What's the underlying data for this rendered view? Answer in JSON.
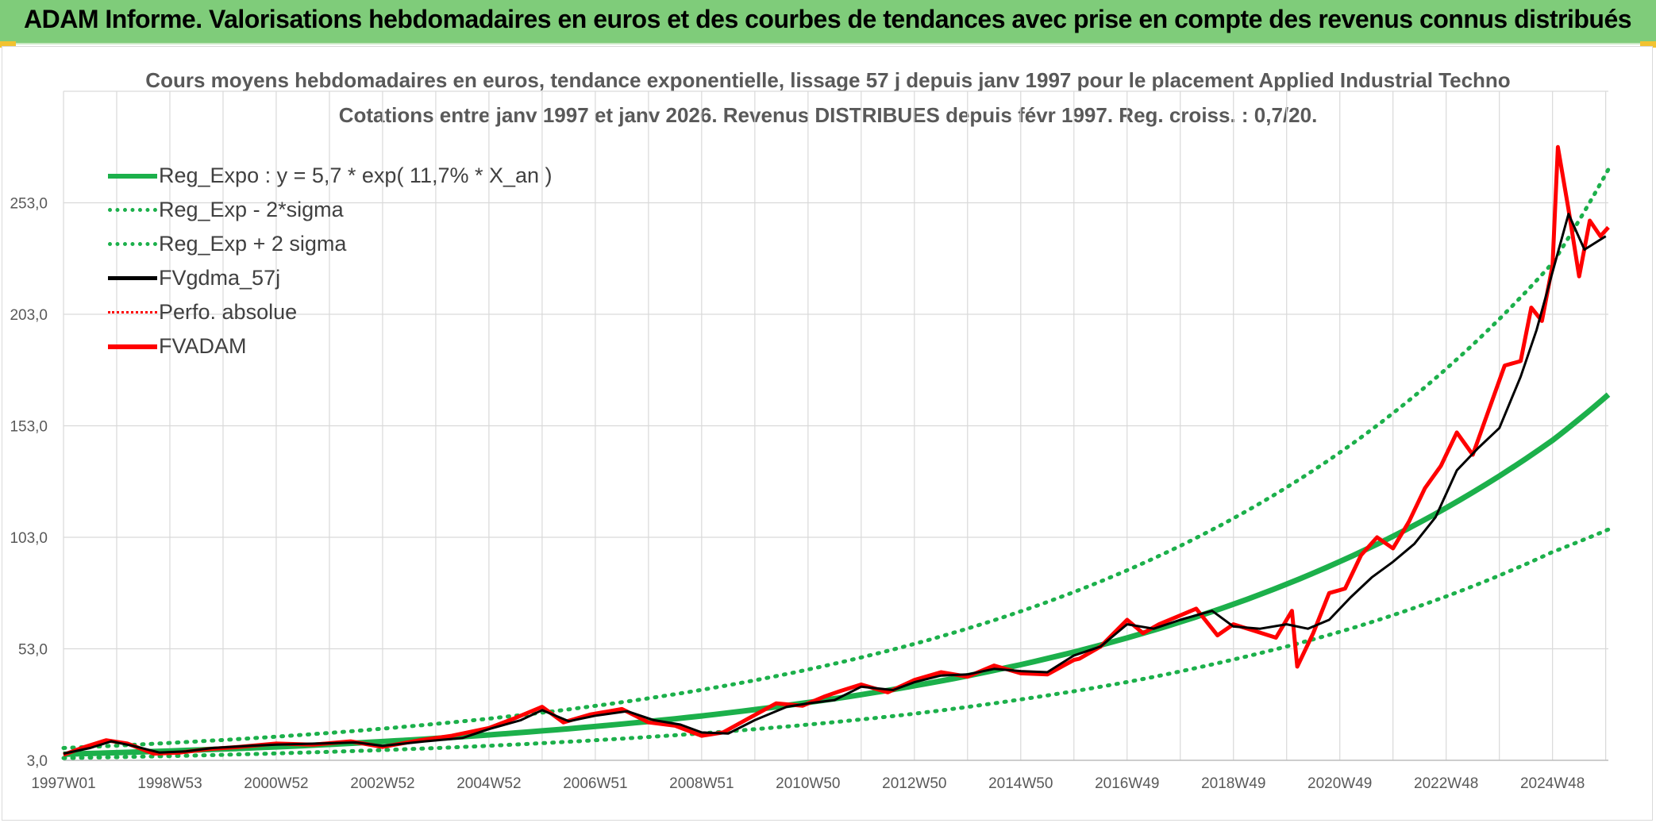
{
  "banner": {
    "title": "ADAM Informe. Valorisations hebdomadaires en euros et des courbes de tendances avec prise en compte des revenus connus distribués"
  },
  "colors": {
    "banner_bg": "#7fcc7a",
    "reg_green": "#1cb04b",
    "fvadam_red": "#ff0000",
    "fvgdma_black": "#000000",
    "grid": "#d9d9d9"
  },
  "chart_data": {
    "type": "line",
    "title_line1": "Cours moyens hebdomadaires en euros, tendance exponentielle, lissage 57 j depuis janv 1997 pour le placement Applied Industrial Techno",
    "title_line2": "Cotations entre janv 1997 et janv 2026. Revenus DISTRIBUES depuis févr 1997. Reg. croiss. : 0,7/20.",
    "xlabel": "",
    "ylabel": "",
    "x_range_years": [
      1997.0,
      2026.05
    ],
    "ylim": [
      3.0,
      303.0
    ],
    "y_ticks": [
      "3,0",
      "53,0",
      "103,0",
      "153,0",
      "203,0",
      "253,0"
    ],
    "y_tick_values": [
      3,
      53,
      103,
      153,
      203,
      253
    ],
    "x_tick_labels": [
      "1997W01",
      "1998W53",
      "2000W52",
      "2002W52",
      "2004W52",
      "2006W51",
      "2008W51",
      "2010W50",
      "2012W50",
      "2014W50",
      "2016W49",
      "2018W49",
      "2020W49",
      "2022W48",
      "2024W48"
    ],
    "x_tick_years": [
      1997.0,
      1999.0,
      2001.0,
      2003.0,
      2005.0,
      2007.0,
      2009.0,
      2011.0,
      2013.0,
      2015.0,
      2017.0,
      2019.0,
      2021.0,
      2023.0,
      2025.0
    ],
    "grid": true,
    "legend_position": "top-left",
    "legend": [
      {
        "name": "Reg_Expo : y = 5,7 * exp( 11,7% *  X_an )",
        "style": "solid-green"
      },
      {
        "name": "Reg_Exp - 2*sigma",
        "style": "dotted-green"
      },
      {
        "name": "Reg_Exp + 2 sigma",
        "style": "dotted-green"
      },
      {
        "name": "FVgdma_57j",
        "style": "solid-black"
      },
      {
        "name": "Perfo. absolue",
        "style": "dotted-red"
      },
      {
        "name": "FVADAM",
        "style": "solid-red"
      }
    ],
    "series": [
      {
        "name": "Reg_Expo",
        "x": [
          1997.0,
          1999.0,
          2001.0,
          2003.0,
          2005.0,
          2007.0,
          2009.0,
          2011.0,
          2013.0,
          2015.0,
          2017.0,
          2019.0,
          2021.0,
          2023.0,
          2025.0,
          2026.05
        ],
        "values": [
          5.7,
          7.2,
          9.0,
          11.4,
          14.4,
          18.2,
          22.9,
          28.9,
          36.4,
          45.9,
          57.9,
          73.0,
          92.1,
          116.2,
          146.5,
          167.0
        ]
      },
      {
        "name": "Reg_Exp - 2*sigma",
        "x": [
          1997.0,
          1999.0,
          2001.0,
          2003.0,
          2005.0,
          2007.0,
          2009.0,
          2011.0,
          2013.0,
          2015.0,
          2017.0,
          2019.0,
          2021.0,
          2023.0,
          2025.0,
          2026.05
        ],
        "values": [
          4.0,
          4.9,
          6.1,
          7.6,
          9.5,
          12.0,
          15.1,
          19.0,
          23.9,
          30.3,
          38.1,
          48.2,
          60.6,
          76.5,
          96.4,
          106.5
        ]
      },
      {
        "name": "Reg_Exp + 2 sigma",
        "x": [
          1997.0,
          1999.0,
          2001.0,
          2003.0,
          2005.0,
          2007.0,
          2009.0,
          2011.0,
          2013.0,
          2015.0,
          2017.0,
          2019.0,
          2021.0,
          2023.0,
          2025.0,
          2026.05
        ],
        "values": [
          8.5,
          10.8,
          13.6,
          17.2,
          21.7,
          27.4,
          34.6,
          43.7,
          55.2,
          69.8,
          88.2,
          111.5,
          141.0,
          178.5,
          226.0,
          268.0
        ]
      },
      {
        "name": "FVgdma_57j",
        "x": [
          1997.0,
          1997.5,
          1997.9,
          1998.3,
          1998.8,
          1999.3,
          1999.8,
          2000.5,
          2001.0,
          2001.8,
          2002.5,
          2003.0,
          2003.8,
          2004.5,
          2005.0,
          2005.6,
          2006.0,
          2006.5,
          2007.0,
          2007.6,
          2008.1,
          2008.6,
          2009.0,
          2009.5,
          2010.0,
          2010.6,
          2011.0,
          2011.5,
          2012.0,
          2012.6,
          2013.0,
          2013.5,
          2014.0,
          2014.5,
          2015.0,
          2015.5,
          2016.0,
          2016.5,
          2017.0,
          2017.5,
          2018.0,
          2018.6,
          2019.0,
          2019.5,
          2020.0,
          2020.4,
          2020.8,
          2021.2,
          2021.6,
          2022.0,
          2022.4,
          2022.8,
          2023.2,
          2023.6,
          2024.0,
          2024.4,
          2024.7,
          2025.0,
          2025.3,
          2025.6,
          2026.0
        ],
        "values": [
          6.0,
          8.5,
          11.5,
          9.5,
          6.5,
          7.0,
          8.5,
          9.5,
          10.0,
          10.5,
          11.0,
          9.5,
          11.5,
          13.0,
          17.0,
          21.0,
          25.5,
          20.5,
          23.0,
          25.0,
          21.0,
          19.0,
          15.5,
          15.0,
          21.0,
          27.0,
          28.5,
          30.0,
          36.0,
          34.5,
          38.0,
          41.0,
          41.5,
          44.0,
          43.0,
          42.5,
          50.0,
          54.0,
          64.0,
          62.0,
          66.0,
          70.0,
          63.0,
          62.0,
          64.0,
          62.0,
          66.0,
          76.0,
          85.0,
          92.0,
          100.0,
          112.0,
          133.0,
          143.0,
          152.0,
          175.0,
          196.0,
          222.0,
          248.0,
          232.0,
          238.0
        ]
      },
      {
        "name": "FVADAM",
        "x": [
          1997.0,
          1997.4,
          1997.8,
          1998.2,
          1998.7,
          1999.2,
          1999.7,
          2000.3,
          2001.0,
          2001.7,
          2002.4,
          2003.0,
          2003.7,
          2004.3,
          2005.0,
          2005.5,
          2006.0,
          2006.4,
          2006.9,
          2007.5,
          2008.0,
          2008.5,
          2009.0,
          2009.4,
          2009.9,
          2010.4,
          2010.9,
          2011.3,
          2011.6,
          2012.0,
          2012.5,
          2013.0,
          2013.5,
          2014.0,
          2014.5,
          2015.0,
          2015.5,
          2016.0,
          2016.1,
          2016.5,
          2017.0,
          2017.3,
          2017.6,
          2018.0,
          2018.3,
          2018.7,
          2019.0,
          2019.4,
          2019.8,
          2020.1,
          2020.2,
          2020.5,
          2020.8,
          2021.1,
          2021.4,
          2021.7,
          2022.0,
          2022.3,
          2022.6,
          2022.9,
          2023.2,
          2023.5,
          2023.8,
          2024.1,
          2024.4,
          2024.6,
          2024.8,
          2025.0,
          2025.1,
          2025.3,
          2025.5,
          2025.7,
          2025.9,
          2026.05
        ],
        "values": [
          5.5,
          9.0,
          12.0,
          10.5,
          6.0,
          6.5,
          8.0,
          9.0,
          10.5,
          10.0,
          11.5,
          9.0,
          12.0,
          14.0,
          17.5,
          22.0,
          27.0,
          20.0,
          23.5,
          26.0,
          20.0,
          18.5,
          14.0,
          15.5,
          22.0,
          28.5,
          27.5,
          31.5,
          34.0,
          37.0,
          33.5,
          39.0,
          42.5,
          40.5,
          45.5,
          42.0,
          41.5,
          48.0,
          48.5,
          54.0,
          66.0,
          60.0,
          64.0,
          68.0,
          71.0,
          59.0,
          64.0,
          61.0,
          58.0,
          70.0,
          45.0,
          60.0,
          78.0,
          80.0,
          95.0,
          103.0,
          98.0,
          110.0,
          125.0,
          135.0,
          150.0,
          140.0,
          160.0,
          180.0,
          182.0,
          206.0,
          200.0,
          225.0,
          278.0,
          250.0,
          220.0,
          245.0,
          238.0,
          242.0
        ]
      }
    ]
  }
}
